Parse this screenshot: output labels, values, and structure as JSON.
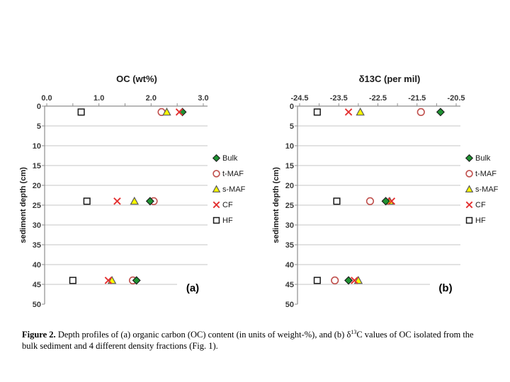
{
  "caption": {
    "label": "Figure 2.",
    "part1": " Depth profiles of (a) organic carbon (OC) content (in units of weight-%), and (b) δ",
    "sup": "13",
    "part2": "C values of OC isolated from the bulk sediment and 4 different density fractions (Fig. 1)."
  },
  "colors": {
    "grid": "#c6c6c6",
    "axis": "#8e8e8e",
    "tick_text": "#383838",
    "bulk_green": "#1f9232",
    "maf_red": "#c0504d",
    "cf_red": "#e33232",
    "smaf_yellow": "#ffff00",
    "smaf_border": "#595959",
    "hf_border": "#1a1a1a",
    "marker_border": "#1a1a1a"
  },
  "render_hints": {
    "draw_order": [
      "HF",
      "t-MAF",
      "s-MAF",
      "Bulk",
      "CF"
    ],
    "legend_order": [
      "Bulk",
      "t-MAF",
      "s-MAF",
      "CF",
      "HF"
    ]
  },
  "chart_data": [
    {
      "type": "scatter",
      "title": "OC (wt%)",
      "xlabel": "OC (wt%)",
      "ylabel": "sediment depth (cm)",
      "panel_label": "(a)",
      "xlim": [
        0.0,
        3.0
      ],
      "ylim": [
        0,
        50
      ],
      "y_inverted": true,
      "grid": "horizontal",
      "legend_position": "right",
      "x_tick_labels": [
        "0.0",
        "1.0",
        "2.0",
        "3.0"
      ],
      "x_tick_values": [
        0.0,
        1.0,
        2.0,
        3.0
      ],
      "x_minor_step": 0.5,
      "y_tick_step": 5,
      "y_tick_labels": [
        "0",
        "5",
        "10",
        "15",
        "20",
        "25",
        "30",
        "35",
        "40",
        "45",
        "50"
      ],
      "depths_cm": [
        1.5,
        24,
        44
      ],
      "series": [
        {
          "name": "Bulk",
          "marker": "diamond",
          "values": [
            2.6,
            1.98,
            1.72
          ]
        },
        {
          "name": "t-MAF",
          "marker": "circle-open",
          "values": [
            2.2,
            2.05,
            1.65
          ]
        },
        {
          "name": "s-MAF",
          "marker": "triangle",
          "values": [
            2.3,
            1.68,
            1.25
          ]
        },
        {
          "name": "CF",
          "marker": "x",
          "values": [
            2.54,
            1.35,
            1.18
          ]
        },
        {
          "name": "HF",
          "marker": "square-open",
          "values": [
            0.66,
            0.77,
            0.5
          ]
        }
      ]
    },
    {
      "type": "scatter",
      "title": "δ13C (per mil)",
      "xlabel": "δ13C (per mil)",
      "ylabel": "sediment depth (cm)",
      "panel_label": "(b)",
      "xlim": [
        -24.5,
        -20.5
      ],
      "ylim": [
        0,
        50
      ],
      "y_inverted": true,
      "grid": "horizontal",
      "legend_position": "right",
      "x_tick_labels": [
        "-24.5",
        "-23.5",
        "-22.5",
        "-21.5",
        "-20.5"
      ],
      "x_tick_values": [
        -24.5,
        -23.5,
        -22.5,
        -21.5,
        -20.5
      ],
      "x_minor_step": 0.5,
      "y_tick_step": 5,
      "y_tick_labels": [
        "0",
        "5",
        "10",
        "15",
        "20",
        "25",
        "30",
        "35",
        "40",
        "45",
        "50"
      ],
      "depths_cm": [
        1.5,
        24,
        44
      ],
      "series": [
        {
          "name": "Bulk",
          "marker": "diamond",
          "values": [
            -20.9,
            -22.3,
            -23.25
          ]
        },
        {
          "name": "t-MAF",
          "marker": "circle-open",
          "values": [
            -21.4,
            -22.7,
            -23.6
          ]
        },
        {
          "name": "s-MAF",
          "marker": "triangle",
          "values": [
            -22.95,
            -22.2,
            -23.0
          ]
        },
        {
          "name": "CF",
          "marker": "x",
          "values": [
            -23.25,
            -22.15,
            -23.1
          ]
        },
        {
          "name": "HF",
          "marker": "square-open",
          "values": [
            -24.05,
            -23.55,
            -24.05
          ]
        }
      ]
    }
  ]
}
